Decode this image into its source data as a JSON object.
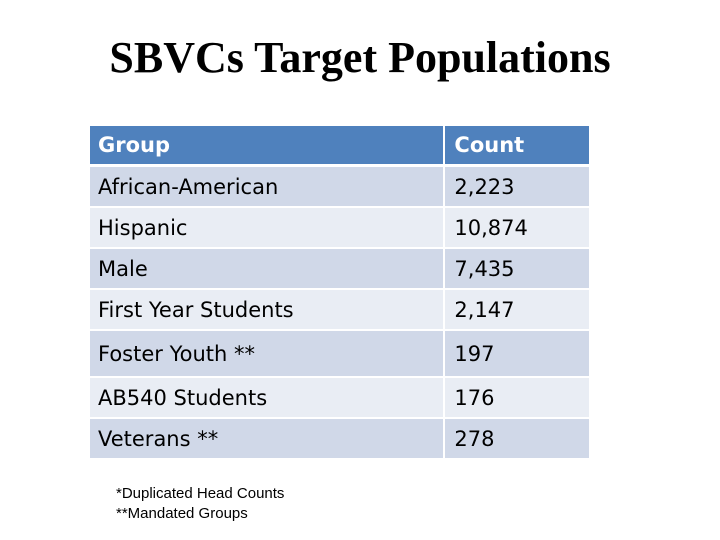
{
  "title": "SBVCs Target Populations",
  "colors": {
    "header_bg": "#4f81bd",
    "row_dark": "#d0d8e8",
    "row_light": "#e9edf4",
    "header_text": "#ffffff"
  },
  "table": {
    "headers": [
      "Group",
      "Count"
    ],
    "rows": [
      {
        "group": "African-American",
        "count": "2,223"
      },
      {
        "group": "Hispanic",
        "count": "10,874"
      },
      {
        "group": "Male",
        "count": "7,435"
      },
      {
        "group": "First Year Students",
        "count": "2,147"
      },
      {
        "group": "Foster Youth **",
        "count": "197"
      },
      {
        "group": "AB540 Students",
        "count": "176"
      },
      {
        "group": "Veterans **",
        "count": "278"
      }
    ]
  },
  "footnotes": [
    "*Duplicated Head Counts",
    "**Mandated Groups"
  ]
}
